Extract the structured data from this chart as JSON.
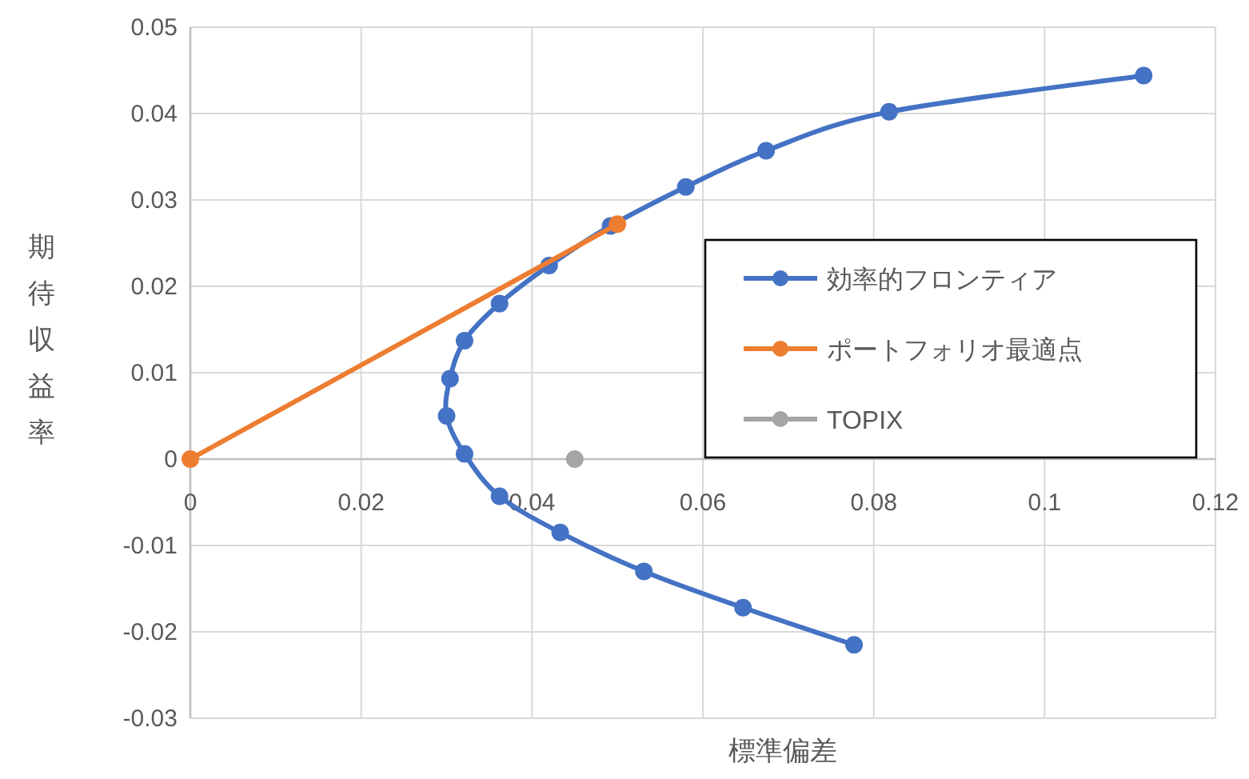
{
  "chart_data": {
    "type": "line",
    "xlabel": "標準偏差",
    "ylabel": "期待収益率",
    "xlim": [
      0,
      0.12
    ],
    "xticks": [
      0,
      0.02,
      0.04,
      0.06,
      0.08,
      0.1,
      0.12
    ],
    "ylim": [
      -0.03,
      0.05
    ],
    "yticks": [
      -0.03,
      -0.02,
      -0.01,
      0,
      0.01,
      0.02,
      0.03,
      0.04,
      0.05
    ],
    "grid": true,
    "legend": "right",
    "marker": "circle",
    "line_style": "solid",
    "series": [
      {
        "name": "効率的フロンティア",
        "color": "#4472c4",
        "x": [
          0.0777,
          0.0647,
          0.0531,
          0.0433,
          0.0362,
          0.0321,
          0.03,
          0.0304,
          0.0321,
          0.0362,
          0.042,
          0.0492,
          0.058,
          0.0674,
          0.0818,
          0.1116
        ],
        "values": [
          -0.0215,
          -0.0172,
          -0.013,
          -0.0085,
          -0.0043,
          0.0006,
          0.005,
          0.0093,
          0.0137,
          0.018,
          0.0224,
          0.027,
          0.0315,
          0.0357,
          0.0402,
          0.0444
        ]
      },
      {
        "name": "ポートフォリオ最適点",
        "color": "#ed7d31",
        "x": [
          0,
          0.05
        ],
        "values": [
          0,
          0.0272
        ]
      },
      {
        "name": "TOPIX",
        "color": "#a5a5a5",
        "x": [
          0.045
        ],
        "values": [
          0
        ]
      }
    ]
  }
}
